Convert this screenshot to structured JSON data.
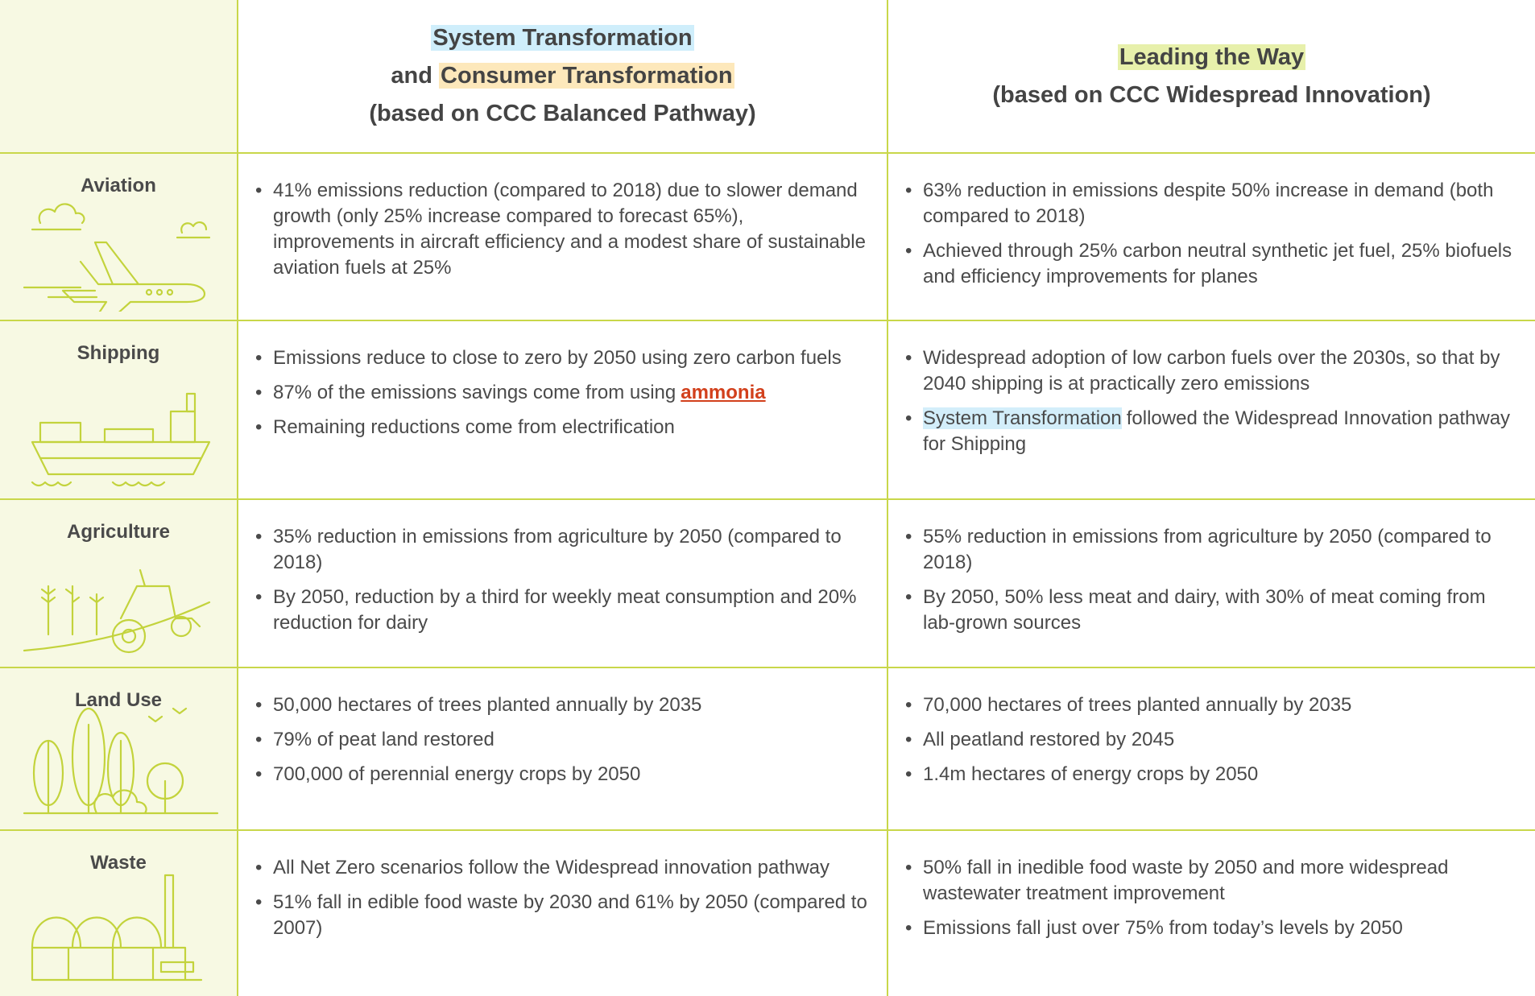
{
  "header": {
    "left": {
      "line1": "System Transformation",
      "line2a": "and",
      "line2b": "Consumer Transformation",
      "line3": "(based on CCC Balanced Pathway)"
    },
    "right": {
      "line1": "Leading the Way",
      "line2": "(based on CCC Widespread Innovation)"
    }
  },
  "rows": [
    {
      "label": "Aviation",
      "left": [
        "41% emissions reduction (compared to 2018) due to slower demand growth (only 25% increase compared to forecast 65%), improvements in aircraft efficiency and a modest share of sustainable aviation fuels at 25%"
      ],
      "right": [
        "63% reduction in emissions despite 50% increase in demand (both compared to 2018)",
        "Achieved through 25% carbon neutral synthetic jet fuel, 25% biofuels and efficiency improvements for planes"
      ]
    },
    {
      "label": "Shipping",
      "left": [
        "Emissions reduce to close to zero by 2050 using zero carbon fuels",
        {
          "text": "87% of the emissions savings come from using",
          "link": "ammonia"
        },
        "Remaining reductions come from electrification"
      ],
      "right": [
        "Widespread adoption of low carbon fuels over the 2030s, so that by 2040 shipping is at practically zero emissions",
        {
          "highlight": "System Transformation",
          "text": "followed the Widespread Innovation pathway for Shipping"
        }
      ]
    },
    {
      "label": "Agriculture",
      "left": [
        "35% reduction in emissions from agriculture by 2050 (compared to 2018)",
        "By 2050, reduction by a third for weekly meat consumption and 20% reduction for dairy"
      ],
      "right": [
        "55% reduction in emissions from agriculture by 2050 (compared to 2018)",
        "By 2050, 50% less meat and dairy, with 30% of meat coming from lab-grown sources"
      ]
    },
    {
      "label": "Land Use",
      "left": [
        "50,000 hectares of trees planted annually by 2035",
        "79% of peat land restored",
        "700,000 of perennial energy crops by 2050"
      ],
      "right": [
        "70,000 hectares of trees planted annually by 2035",
        "All peatland restored by 2045",
        "1.4m hectares of energy crops by 2050"
      ]
    },
    {
      "label": "Waste",
      "left": [
        "All Net Zero scenarios follow the Widespread innovation pathway",
        "51% fall in edible food waste by 2030 and 61% by 2050 (compared to 2007)"
      ],
      "right": [
        "50% fall in inedible food waste by 2050 and more widespread wastewater treatment improvement",
        "Emissions fall just over 75% from today’s levels by 2050"
      ]
    }
  ]
}
